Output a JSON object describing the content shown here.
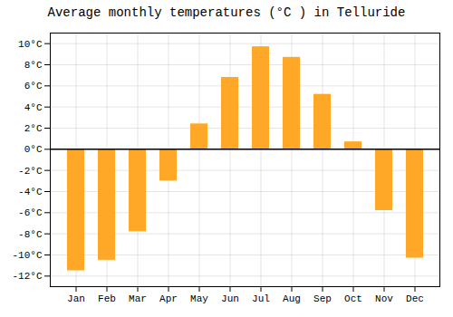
{
  "chart_data": {
    "type": "bar",
    "title": "Average monthly temperatures (°C ) in Telluride",
    "categories": [
      "Jan",
      "Feb",
      "Mar",
      "Apr",
      "May",
      "Jun",
      "Jul",
      "Aug",
      "Sep",
      "Oct",
      "Nov",
      "Dec"
    ],
    "values": [
      -11.5,
      -10.5,
      -7.8,
      -3.0,
      2.4,
      6.8,
      9.7,
      8.7,
      5.2,
      0.7,
      -5.8,
      -10.3
    ],
    "color": "#FFA726",
    "ylim": [
      -13,
      11
    ],
    "yticks": [
      {
        "value": -12,
        "label": "-12°C"
      },
      {
        "value": -10,
        "label": "-10°C"
      },
      {
        "value": -8,
        "label": "-8°C"
      },
      {
        "value": -6,
        "label": "-6°C"
      },
      {
        "value": -4,
        "label": "-4°C"
      },
      {
        "value": -2,
        "label": "-2°C"
      },
      {
        "value": 0,
        "label": "0°C"
      },
      {
        "value": 2,
        "label": "2°C"
      },
      {
        "value": 4,
        "label": "4°C"
      },
      {
        "value": 6,
        "label": "6°C"
      },
      {
        "value": 8,
        "label": "8°C"
      },
      {
        "value": 10,
        "label": "10°C"
      }
    ],
    "grid": true
  }
}
